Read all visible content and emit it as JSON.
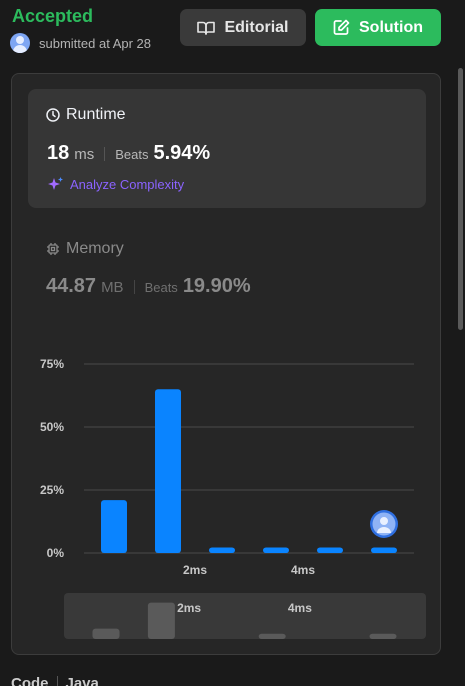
{
  "status": "Accepted",
  "submitted_text": "submitted at Apr 28",
  "buttons": {
    "editorial": "Editorial",
    "solution": "Solution"
  },
  "runtime": {
    "title": "Runtime",
    "value": "18",
    "unit": "ms",
    "beats_label": "Beats",
    "beats": "5.94%",
    "analyze": "Analyze Complexity"
  },
  "memory": {
    "title": "Memory",
    "value": "44.87",
    "unit": "MB",
    "beats_label": "Beats",
    "beats": "19.90%"
  },
  "colors": {
    "accent_green": "#2cbb5d",
    "bar_blue": "#0a84ff",
    "analyze_purple": "#8b63ff"
  },
  "chart_data": {
    "type": "bar",
    "y_ticks": [
      "75%",
      "50%",
      "25%",
      "0%"
    ],
    "ylim": [
      0,
      75
    ],
    "x_tick_labels": [
      "2ms",
      "4ms"
    ],
    "x_tick_positions": [
      2,
      4
    ],
    "values": [
      21,
      65,
      2.2,
      2.2,
      2.2,
      2.2
    ],
    "current_bar_index": 5,
    "minimap_values": [
      4,
      14,
      0,
      2,
      0,
      2
    ],
    "grid": true
  },
  "footer": {
    "left": "Code",
    "right": "Java"
  }
}
